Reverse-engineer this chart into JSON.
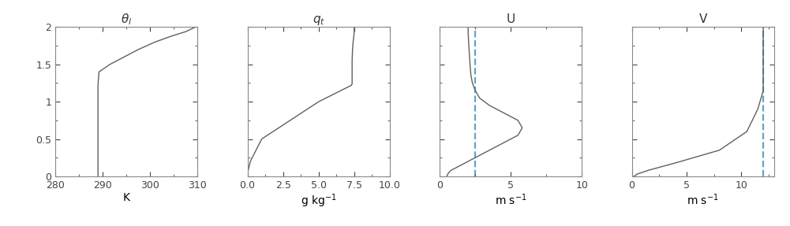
{
  "panels": [
    {
      "title": "$\\theta_l$",
      "xlabel": "K",
      "xlim": [
        280,
        310
      ],
      "xticks": [
        280,
        290,
        300,
        310
      ],
      "profile_x": [
        289.0,
        289.0,
        289.0,
        289.0,
        289.0,
        289.0,
        289.0,
        289.0,
        289.0,
        289.0,
        289.0,
        289.0,
        289.0,
        289.0,
        289.05,
        289.1,
        289.15,
        289.2,
        291.5,
        294.5,
        297.5,
        301.0,
        304.5,
        307.5,
        309.5
      ],
      "profile_z": [
        0.0,
        0.05,
        0.1,
        0.2,
        0.3,
        0.4,
        0.5,
        0.6,
        0.7,
        0.8,
        0.9,
        1.0,
        1.1,
        1.2,
        1.28,
        1.3,
        1.35,
        1.4,
        1.5,
        1.6,
        1.7,
        1.8,
        1.88,
        1.94,
        2.0
      ],
      "dashed_lines": [],
      "dashed_color": null
    },
    {
      "title": "$q_t$",
      "xlabel": "g kg$^{-1}$",
      "xlim": [
        0,
        10
      ],
      "xticks": [
        0,
        2.5,
        5,
        7.5,
        10
      ],
      "profile_x": [
        7.5,
        7.5,
        7.48,
        7.45,
        7.42,
        7.4,
        7.38,
        7.37,
        7.36,
        7.35,
        7.35,
        7.35,
        7.35,
        7.35,
        7.35,
        7.35,
        7.35,
        7.35,
        7.35,
        7.3,
        5.0,
        1.0,
        0.2,
        0.05,
        0.0
      ],
      "profile_z": [
        2.0,
        1.95,
        1.9,
        1.85,
        1.8,
        1.75,
        1.7,
        1.65,
        1.6,
        1.55,
        1.5,
        1.45,
        1.4,
        1.35,
        1.32,
        1.3,
        1.28,
        1.26,
        1.24,
        1.22,
        1.0,
        0.5,
        0.2,
        0.08,
        0.0
      ],
      "dashed_lines": [],
      "dashed_color": null
    },
    {
      "title": "U",
      "xlabel": "m s$^{-1}$",
      "xlim": [
        0,
        10
      ],
      "xticks": [
        0,
        5,
        10
      ],
      "profile_x": [
        0.5,
        0.6,
        0.8,
        1.2,
        1.8,
        2.5,
        3.5,
        4.5,
        5.5,
        5.8,
        5.5,
        4.5,
        3.5,
        2.8,
        2.5,
        2.3,
        2.2,
        2.15,
        2.1,
        2.05,
        2.02,
        2.0,
        2.0,
        2.0,
        2.0
      ],
      "profile_z": [
        0.0,
        0.04,
        0.08,
        0.12,
        0.18,
        0.25,
        0.35,
        0.45,
        0.55,
        0.65,
        0.75,
        0.85,
        0.95,
        1.05,
        1.15,
        1.25,
        1.35,
        1.45,
        1.6,
        1.75,
        1.85,
        1.92,
        1.96,
        1.98,
        2.0
      ],
      "dashed_lines": [
        2.5
      ],
      "dashed_color": "#5BA8C8"
    },
    {
      "title": "V",
      "xlabel": "m s$^{-1}$",
      "xlim": [
        0,
        13
      ],
      "xticks": [
        0,
        5,
        10
      ],
      "profile_x": [
        12.0,
        12.0,
        12.0,
        12.0,
        12.0,
        12.0,
        12.0,
        12.0,
        12.0,
        12.0,
        12.0,
        12.0,
        12.0,
        12.0,
        12.0,
        12.0,
        12.0,
        12.0,
        11.5,
        10.5,
        8.0,
        4.0,
        1.5,
        0.5,
        0.2
      ],
      "profile_z": [
        2.0,
        1.95,
        1.9,
        1.85,
        1.8,
        1.75,
        1.7,
        1.65,
        1.6,
        1.55,
        1.5,
        1.45,
        1.4,
        1.35,
        1.3,
        1.25,
        1.2,
        1.15,
        0.9,
        0.6,
        0.35,
        0.18,
        0.08,
        0.03,
        0.0
      ],
      "dashed_lines": [
        12.0
      ],
      "dashed_color": "#5BA8C8"
    }
  ],
  "ylim": [
    0,
    2
  ],
  "yticks": [
    0,
    0.5,
    1,
    1.5,
    2
  ],
  "yticklabels": [
    "0",
    "0.5",
    "1",
    "1.5",
    "2"
  ],
  "line_color": "#606060",
  "line_width": 1.0,
  "dashed_linewidth": 1.6,
  "figsize": [
    10.01,
    2.87
  ],
  "dpi": 100,
  "bg_color": "#f0f0f0",
  "title_fontsize": 11,
  "tick_labelsize": 9,
  "xlabel_fontsize": 10
}
